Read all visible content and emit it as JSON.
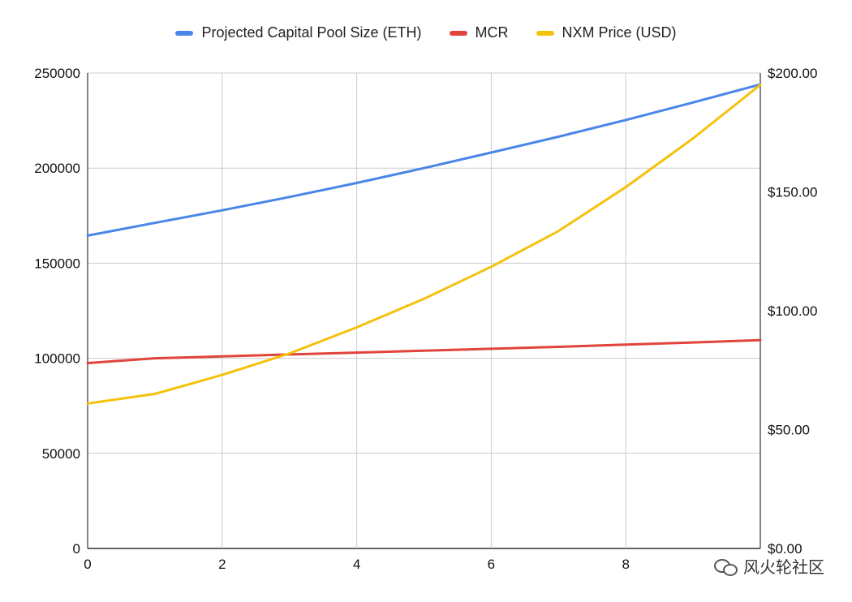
{
  "chart_data": {
    "type": "line",
    "x": [
      0,
      1,
      2,
      3,
      4,
      5,
      6,
      7,
      8,
      9,
      10
    ],
    "series": [
      {
        "name": "Projected Capital Pool Size (ETH)",
        "axis": "left",
        "color": "#4a86e8",
        "values": [
          164500,
          171200,
          177800,
          184800,
          192200,
          200000,
          208200,
          216500,
          225300,
          234500,
          244000
        ]
      },
      {
        "name": "MCR",
        "axis": "left",
        "color": "#e0443b",
        "values": [
          97500,
          100000,
          101000,
          102000,
          103000,
          104000,
          105000,
          106000,
          107200,
          108300,
          109500
        ]
      },
      {
        "name": "NXM Price (USD)",
        "axis": "right",
        "color": "#f4c20d",
        "values": [
          61,
          65,
          73,
          82,
          93,
          105,
          118.5,
          133.5,
          152,
          172.5,
          195
        ]
      }
    ],
    "xticks": [
      "0",
      "2",
      "4",
      "6",
      "8"
    ],
    "yticks_left": [
      "0",
      "50000",
      "100000",
      "150000",
      "200000",
      "250000"
    ],
    "yticks_right": [
      "$0.00",
      "$50.00",
      "$100.00",
      "$150.00",
      "$200.00"
    ],
    "xlim": [
      0,
      10
    ],
    "ylim_left": [
      0,
      250000
    ],
    "ylim_right": [
      0,
      200
    ],
    "grid": true,
    "legend_position": "top-center"
  },
  "watermark": "风火轮社区"
}
